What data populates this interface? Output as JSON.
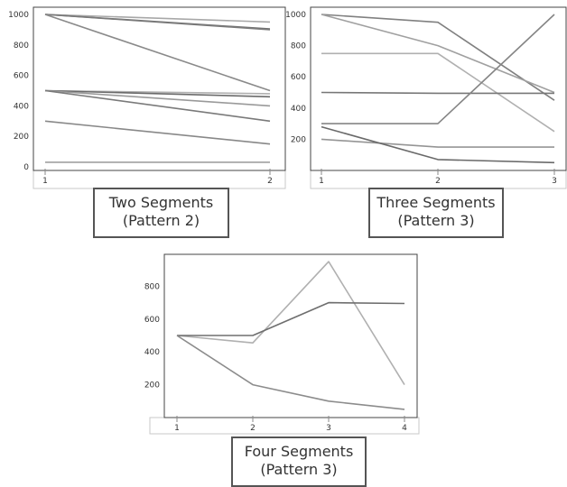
{
  "chart_data": [
    {
      "type": "line",
      "title": "",
      "x": [
        1,
        2
      ],
      "xticks": [
        "1",
        "2"
      ],
      "yticks": [
        "0",
        "200",
        "400",
        "600",
        "800",
        "1000"
      ],
      "ylim": [
        0,
        1000
      ],
      "grid": false,
      "series": [
        {
          "values": [
            1000,
            950
          ],
          "color": "#a8a8a8"
        },
        {
          "values": [
            1000,
            905
          ],
          "color": "#707070"
        },
        {
          "values": [
            1000,
            900
          ],
          "color": "#7a7a7a"
        },
        {
          "values": [
            1000,
            500
          ],
          "color": "#8a8a8a"
        },
        {
          "values": [
            500,
            480
          ],
          "color": "#b0b0b0"
        },
        {
          "values": [
            500,
            460
          ],
          "color": "#6a6a6a"
        },
        {
          "values": [
            500,
            400
          ],
          "color": "#9a9a9a"
        },
        {
          "values": [
            500,
            300
          ],
          "color": "#7a7a7a"
        },
        {
          "values": [
            300,
            150
          ],
          "color": "#888888"
        },
        {
          "values": [
            30,
            30
          ],
          "color": "#a0a0a0"
        }
      ],
      "caption": [
        "Two Segments",
        "(Pattern 2)"
      ]
    },
    {
      "type": "line",
      "title": "",
      "x": [
        1,
        2,
        3
      ],
      "xticks": [
        "1",
        "2",
        "3"
      ],
      "yticks": [
        "200",
        "400",
        "600",
        "800",
        "1000"
      ],
      "ylim": [
        0,
        1000
      ],
      "grid": false,
      "series": [
        {
          "values": [
            1000,
            950,
            450
          ],
          "color": "#808080"
        },
        {
          "values": [
            1000,
            800,
            500
          ],
          "color": "#a0a0a0"
        },
        {
          "values": [
            750,
            750,
            250
          ],
          "color": "#b0b0b0"
        },
        {
          "values": [
            500,
            495,
            495
          ],
          "color": "#777777"
        },
        {
          "values": [
            300,
            300,
            1000
          ],
          "color": "#858585"
        },
        {
          "values": [
            200,
            150,
            150
          ],
          "color": "#959595"
        },
        {
          "values": [
            280,
            70,
            50
          ],
          "color": "#6a6a6a"
        }
      ],
      "caption": [
        "Three Segments",
        "(Pattern 3)"
      ]
    },
    {
      "type": "line",
      "title": "",
      "x": [
        1,
        2,
        3,
        4
      ],
      "xticks": [
        "1",
        "2",
        "3",
        "4"
      ],
      "yticks": [
        "200",
        "400",
        "600",
        "800"
      ],
      "ylim": [
        0,
        1000
      ],
      "grid": false,
      "series": [
        {
          "values": [
            500,
            455,
            950,
            200
          ],
          "color": "#b0b0b0"
        },
        {
          "values": [
            500,
            500,
            700,
            695
          ],
          "color": "#6e6e6e"
        },
        {
          "values": [
            500,
            200,
            100,
            50
          ],
          "color": "#8c8c8c"
        }
      ],
      "caption": [
        "Four Segments",
        "(Pattern 3)"
      ]
    }
  ]
}
